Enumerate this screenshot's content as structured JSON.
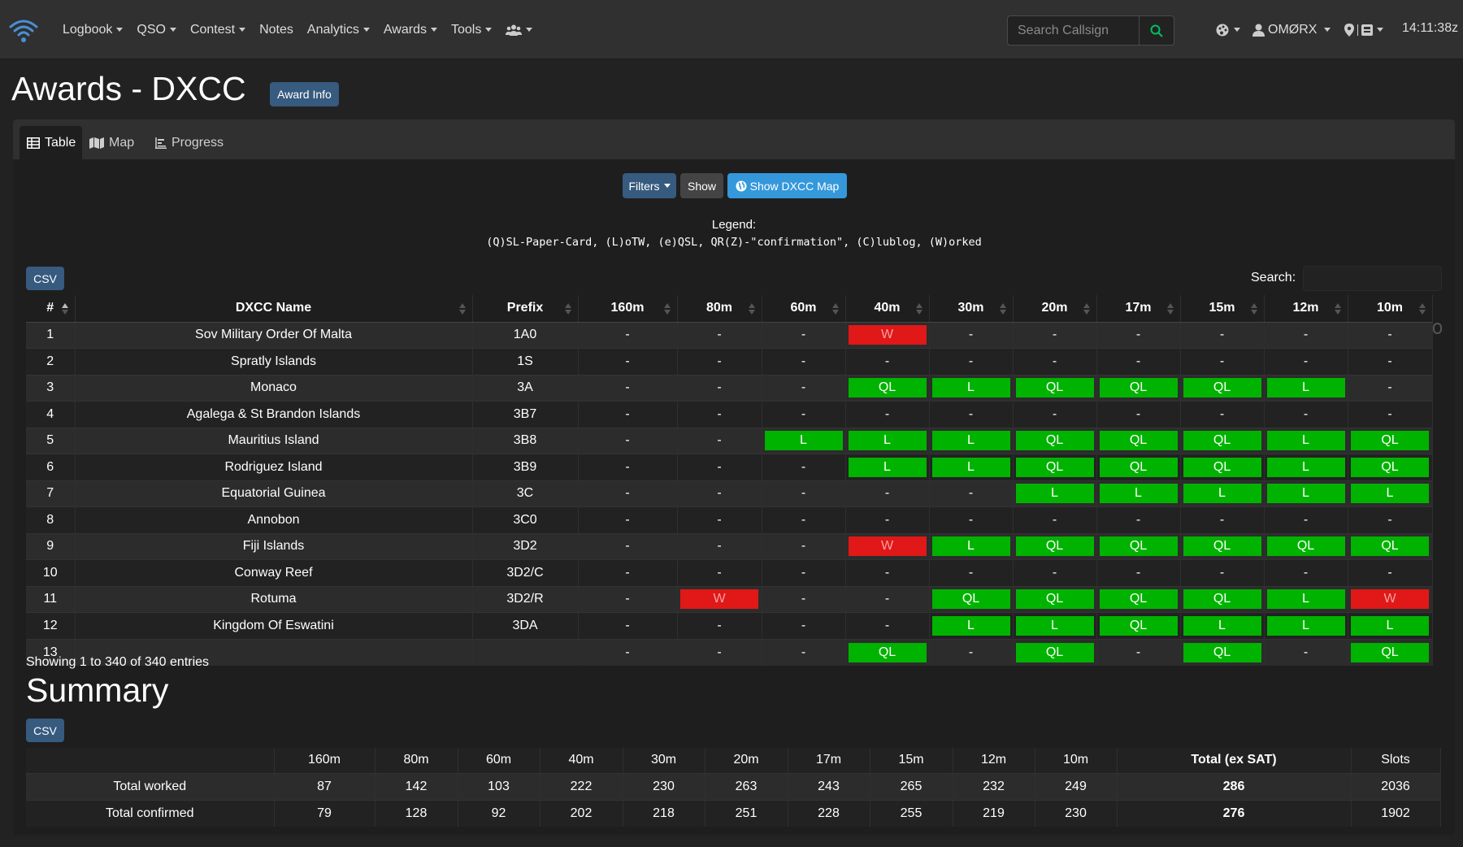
{
  "nav": {
    "items": [
      {
        "label": "Logbook",
        "dropdown": true
      },
      {
        "label": "QSO",
        "dropdown": true
      },
      {
        "label": "Contest",
        "dropdown": true
      },
      {
        "label": "Notes",
        "dropdown": false
      },
      {
        "label": "Analytics",
        "dropdown": true
      },
      {
        "label": "Awards",
        "dropdown": true
      },
      {
        "label": "Tools",
        "dropdown": true
      }
    ],
    "search_placeholder": "Search Callsign",
    "user": "OMØRX",
    "clock": "14:11:38z"
  },
  "page": {
    "title": "Awards - DXCC",
    "award_info": "Award Info"
  },
  "tabs": [
    {
      "label": "Table",
      "icon": "table-icon",
      "active": true
    },
    {
      "label": "Map",
      "icon": "map-icon",
      "active": false
    },
    {
      "label": "Progress",
      "icon": "progress-icon",
      "active": false
    }
  ],
  "toolbar": {
    "filters": "Filters",
    "show": "Show",
    "show_map": "Show DXCC Map"
  },
  "legend": {
    "title": "Legend:",
    "text": "(Q)SL-Paper-Card, (L)oTW, (e)QSL, QR(Z)-\"confirmation\", (C)lublog, (W)orked"
  },
  "csv_label": "CSV",
  "search_label": "Search:",
  "table": {
    "headers": [
      "#",
      "DXCC Name",
      "Prefix",
      "160m",
      "80m",
      "60m",
      "40m",
      "30m",
      "20m",
      "17m",
      "15m",
      "12m",
      "10m"
    ],
    "rows": [
      {
        "num": "1",
        "name": "Sov Military Order Of Malta",
        "prefix": "1A0",
        "bands": [
          "-",
          "-",
          "-",
          "W",
          "-",
          "-",
          "-",
          "-",
          "-",
          "-"
        ]
      },
      {
        "num": "2",
        "name": "Spratly Islands",
        "prefix": "1S",
        "bands": [
          "-",
          "-",
          "-",
          "-",
          "-",
          "-",
          "-",
          "-",
          "-",
          "-"
        ]
      },
      {
        "num": "3",
        "name": "Monaco",
        "prefix": "3A",
        "bands": [
          "-",
          "-",
          "-",
          "QL",
          "L",
          "QL",
          "QL",
          "QL",
          "L",
          "-"
        ]
      },
      {
        "num": "4",
        "name": "Agalega & St Brandon Islands",
        "prefix": "3B7",
        "bands": [
          "-",
          "-",
          "-",
          "-",
          "-",
          "-",
          "-",
          "-",
          "-",
          "-"
        ]
      },
      {
        "num": "5",
        "name": "Mauritius Island",
        "prefix": "3B8",
        "bands": [
          "-",
          "-",
          "L",
          "L",
          "L",
          "QL",
          "QL",
          "QL",
          "L",
          "QL"
        ]
      },
      {
        "num": "6",
        "name": "Rodriguez Island",
        "prefix": "3B9",
        "bands": [
          "-",
          "-",
          "-",
          "L",
          "L",
          "QL",
          "QL",
          "QL",
          "L",
          "QL"
        ]
      },
      {
        "num": "7",
        "name": "Equatorial Guinea",
        "prefix": "3C",
        "bands": [
          "-",
          "-",
          "-",
          "-",
          "-",
          "L",
          "L",
          "L",
          "L",
          "L"
        ]
      },
      {
        "num": "8",
        "name": "Annobon",
        "prefix": "3C0",
        "bands": [
          "-",
          "-",
          "-",
          "-",
          "-",
          "-",
          "-",
          "-",
          "-",
          "-"
        ]
      },
      {
        "num": "9",
        "name": "Fiji Islands",
        "prefix": "3D2",
        "bands": [
          "-",
          "-",
          "-",
          "W",
          "L",
          "QL",
          "QL",
          "QL",
          "QL",
          "QL"
        ]
      },
      {
        "num": "10",
        "name": "Conway Reef",
        "prefix": "3D2/C",
        "bands": [
          "-",
          "-",
          "-",
          "-",
          "-",
          "-",
          "-",
          "-",
          "-",
          "-"
        ]
      },
      {
        "num": "11",
        "name": "Rotuma",
        "prefix": "3D2/R",
        "bands": [
          "-",
          "W",
          "-",
          "-",
          "QL",
          "QL",
          "QL",
          "QL",
          "L",
          "W"
        ]
      },
      {
        "num": "12",
        "name": "Kingdom Of Eswatini",
        "prefix": "3DA",
        "bands": [
          "-",
          "-",
          "-",
          "-",
          "L",
          "L",
          "QL",
          "L",
          "L",
          "L"
        ]
      },
      {
        "num": "13",
        "name": "",
        "prefix": "",
        "bands": [
          "-",
          "-",
          "-",
          "QL",
          "-",
          "QL",
          "-",
          "QL",
          "-",
          "QL"
        ]
      }
    ]
  },
  "showing": "Showing 1 to 340 of 340 entries",
  "summary": {
    "title": "Summary",
    "headers": [
      "",
      "160m",
      "80m",
      "60m",
      "40m",
      "30m",
      "20m",
      "17m",
      "15m",
      "12m",
      "10m",
      "Total (ex SAT)",
      "Slots"
    ],
    "rows": [
      {
        "label": "Total worked",
        "values": [
          "87",
          "142",
          "103",
          "222",
          "230",
          "263",
          "243",
          "265",
          "232",
          "249",
          "286",
          "2036"
        ]
      },
      {
        "label": "Total confirmed",
        "values": [
          "79",
          "128",
          "92",
          "202",
          "218",
          "251",
          "228",
          "255",
          "219",
          "230",
          "276",
          "1902"
        ]
      }
    ]
  },
  "colors": {
    "confirmed": "#00b300",
    "worked": "#e01818",
    "primary": "#375a7f",
    "info": "#3498db"
  }
}
